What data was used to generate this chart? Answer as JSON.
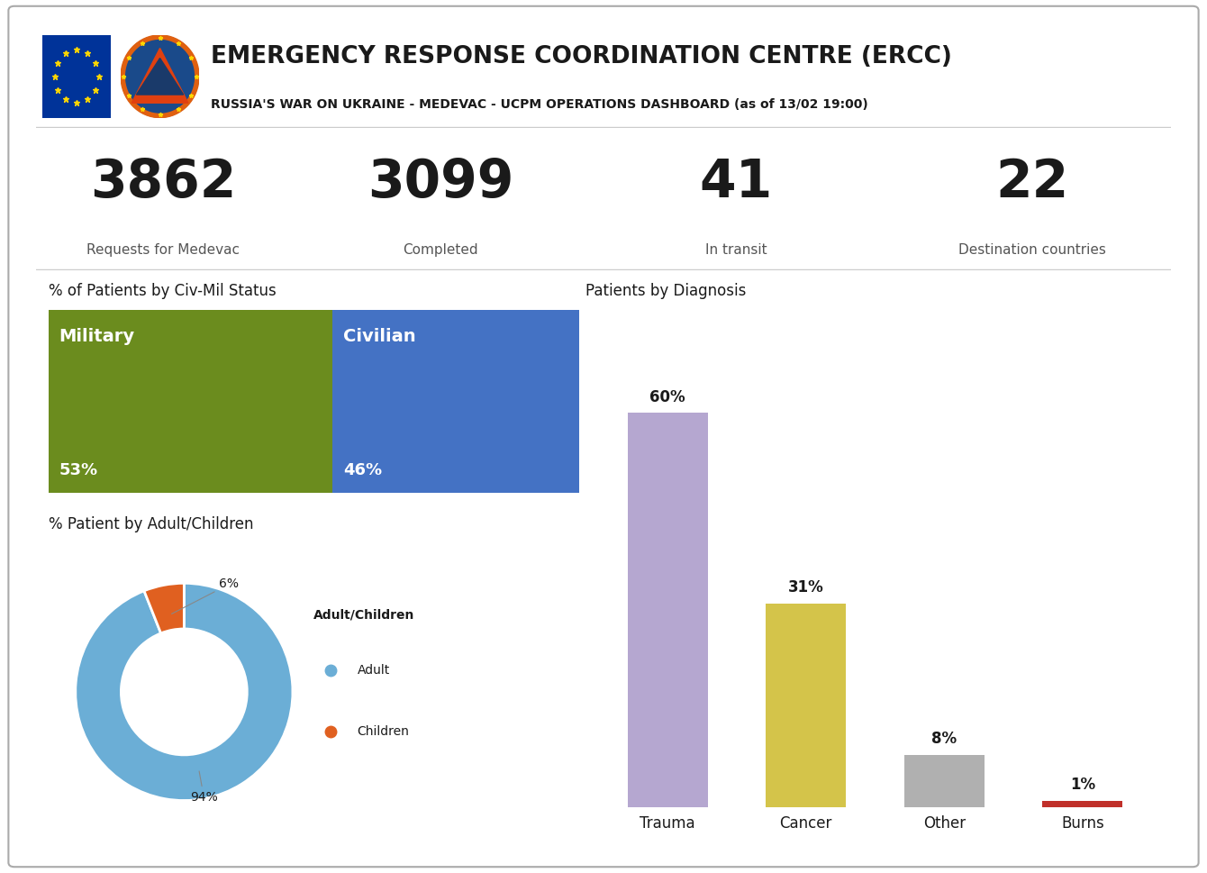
{
  "title_main": "EMERGENCY RESPONSE COORDINATION CENTRE (ERCC)",
  "title_sub": "RUSSIA'S WAR ON UKRAINE - MEDEVAC - UCPM OPERATIONS DASHBOARD (as of 13/02 19:00)",
  "stats": [
    {
      "value": "3862",
      "label": "Requests for Medevac"
    },
    {
      "value": "3099",
      "label": "Completed"
    },
    {
      "value": "41",
      "label": "In transit"
    },
    {
      "value": "22",
      "label": "Destination countries"
    }
  ],
  "civ_mil_title": "% of Patients by Civ-Mil Status",
  "military_pct": 53,
  "civilian_pct": 46,
  "military_color": "#6b8c1e",
  "civilian_color": "#4472c4",
  "adult_children_title": "% Patient by Adult/Children",
  "donut_values": [
    94,
    6
  ],
  "donut_labels": [
    "Adult",
    "Children"
  ],
  "donut_colors": [
    "#6baed6",
    "#e06020"
  ],
  "diagnosis_title": "Patients by Diagnosis",
  "diag_categories": [
    "Trauma",
    "Cancer",
    "Other",
    "Burns"
  ],
  "diag_values": [
    60,
    31,
    8,
    1
  ],
  "diag_colors": [
    "#b5a7d0",
    "#d4c44a",
    "#b0b0b0",
    "#c0302a"
  ],
  "bg_color": "#ffffff",
  "border_color": "#aaaaaa",
  "text_dark": "#1a1a1a",
  "text_gray": "#555555"
}
